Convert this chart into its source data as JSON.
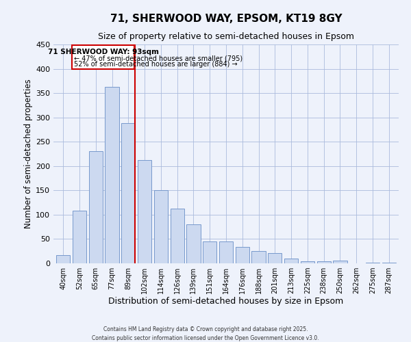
{
  "title": "71, SHERWOOD WAY, EPSOM, KT19 8GY",
  "subtitle": "Size of property relative to semi-detached houses in Epsom",
  "xlabel": "Distribution of semi-detached houses by size in Epsom",
  "ylabel": "Number of semi-detached properties",
  "categories": [
    "40sqm",
    "52sqm",
    "65sqm",
    "77sqm",
    "89sqm",
    "102sqm",
    "114sqm",
    "126sqm",
    "139sqm",
    "151sqm",
    "164sqm",
    "176sqm",
    "188sqm",
    "201sqm",
    "213sqm",
    "225sqm",
    "238sqm",
    "250sqm",
    "262sqm",
    "275sqm",
    "287sqm"
  ],
  "values": [
    17,
    108,
    230,
    363,
    288,
    213,
    150,
    112,
    80,
    45,
    45,
    34,
    25,
    21,
    10,
    4,
    4,
    5,
    0,
    2,
    1
  ],
  "bar_color": "#ccd9f0",
  "bar_edge_color": "#7799cc",
  "vline_idx": 4,
  "vline_color": "#cc0000",
  "box_text_line1": "71 SHERWOOD WAY: 93sqm",
  "box_text_line2": "← 47% of semi-detached houses are smaller (795)",
  "box_text_line3": "52% of semi-detached houses are larger (884) →",
  "box_color": "#cc0000",
  "ylim": [
    0,
    450
  ],
  "yticks": [
    0,
    50,
    100,
    150,
    200,
    250,
    300,
    350,
    400,
    450
  ],
  "title_fontsize": 11,
  "subtitle_fontsize": 9,
  "footer_line1": "Contains HM Land Registry data © Crown copyright and database right 2025.",
  "footer_line2": "Contains public sector information licensed under the Open Government Licence v3.0.",
  "bg_color": "#eef2fb",
  "plot_bg_color": "#eef2fb"
}
